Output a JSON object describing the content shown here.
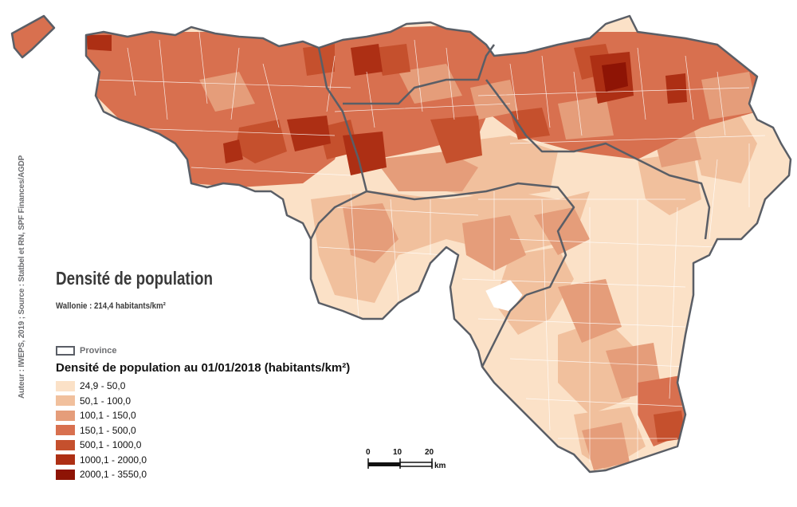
{
  "map": {
    "title": "Densité de population",
    "subtitle": "Wallonie : 214,4 habitants/km²",
    "credit": "Auteur : IWEPS, 2019 ; Source : Statbel et RN, SPF Finances/AGDP"
  },
  "province_legend": {
    "label": "Province",
    "stroke_color": "#5a5e66"
  },
  "legend": {
    "title": "Densité de population au 01/01/2018 (habitants/km²)",
    "classes": [
      {
        "label": "24,9 - 50,0",
        "color": "#fbe1c7"
      },
      {
        "label": "50,1 - 100,0",
        "color": "#f1c09d"
      },
      {
        "label": "100,1 - 150,0",
        "color": "#e59d7a"
      },
      {
        "label": "150,1 - 500,0",
        "color": "#d8704f"
      },
      {
        "label": "500,1 - 1000,0",
        "color": "#c5502d"
      },
      {
        "label": "1000,1 - 2000,0",
        "color": "#ad2f14"
      },
      {
        "label": "2000,1 - 3550,0",
        "color": "#8e1405"
      }
    ]
  },
  "scale_bar": {
    "ticks": [
      "0",
      "10",
      "20"
    ],
    "unit": "km"
  }
}
